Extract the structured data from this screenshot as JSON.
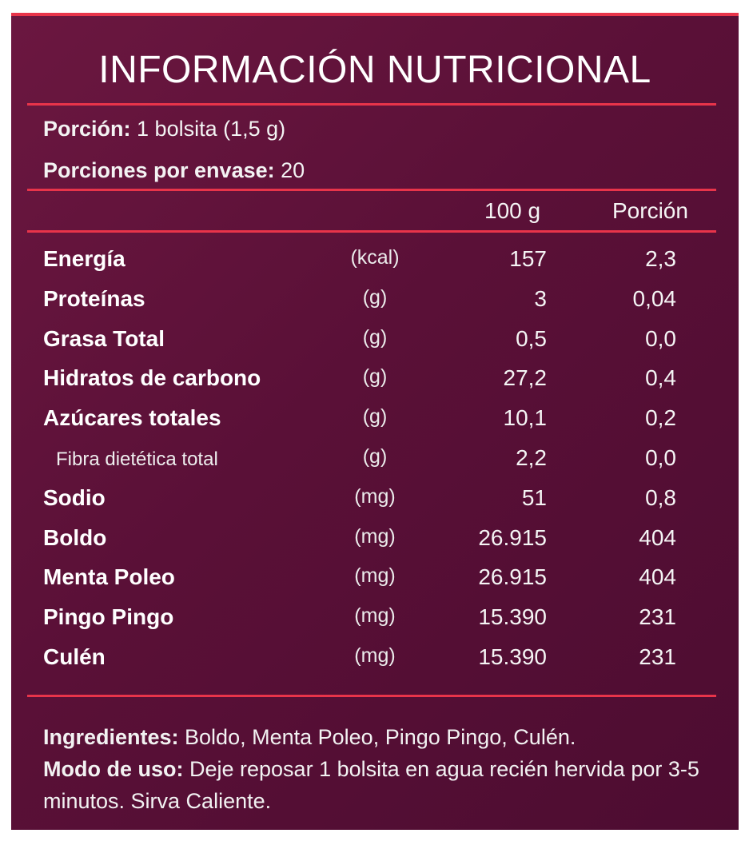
{
  "colors": {
    "background": "#5a1037",
    "rule": "#e8344a",
    "text": "#ffffff"
  },
  "title": "INFORMACIÓN  NUTRICIONAL",
  "serving": {
    "portion_label": "Porción:",
    "portion_value": "1 bolsita (1,5 g)",
    "per_pack_label": "Porciones por envase:",
    "per_pack_value": "20"
  },
  "columns": {
    "per100": "100 g",
    "per_portion": "Porción"
  },
  "rows": [
    {
      "name": "Energía",
      "unit": "(kcal)",
      "per100": "157",
      "portion": "2,3"
    },
    {
      "name": "Proteínas",
      "unit": "(g)",
      "per100": "3",
      "portion": "0,04"
    },
    {
      "name": "Grasa Total",
      "unit": "(g)",
      "per100": "0,5",
      "portion": "0,0"
    },
    {
      "name": "Hidratos de carbono",
      "unit": "(g)",
      "per100": "27,2",
      "portion": "0,4"
    },
    {
      "name": "Azúcares totales",
      "unit": "(g)",
      "per100": "10,1",
      "portion": "0,2"
    },
    {
      "name": "Fibra dietética total",
      "unit": "(g)",
      "per100": "2,2",
      "portion": "0,0"
    },
    {
      "name": "Sodio",
      "unit": "(mg)",
      "per100": "51",
      "portion": "0,8"
    },
    {
      "name": "Boldo",
      "unit": "(mg)",
      "per100": "26.915",
      "portion": "404"
    },
    {
      "name": "Menta Poleo",
      "unit": "(mg)",
      "per100": "26.915",
      "portion": "404"
    },
    {
      "name": "Pingo Pingo",
      "unit": "(mg)",
      "per100": "15.390",
      "portion": "231"
    },
    {
      "name": "Culén",
      "unit": "(mg)",
      "per100": "15.390",
      "portion": "231"
    }
  ],
  "ingredients": {
    "label": "Ingredientes:",
    "text": " Boldo, Menta Poleo, Pingo Pingo, Culén."
  },
  "usage": {
    "label": "Modo de uso:",
    "text": " Deje reposar 1 bolsita en agua recién hervida por 3-5 minutos. Sirva Caliente."
  }
}
